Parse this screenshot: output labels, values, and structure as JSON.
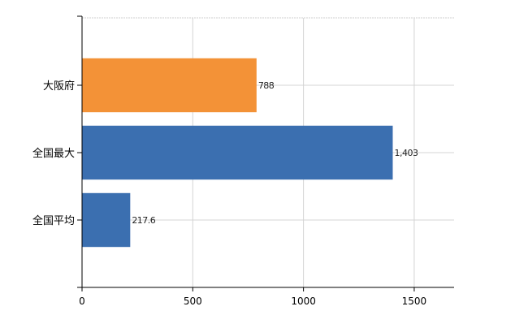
{
  "chart_data": {
    "type": "bar",
    "orientation": "horizontal",
    "title": "",
    "xlabel": "",
    "ylabel": "",
    "categories": [
      "大阪府",
      "全国最大",
      "全国平均"
    ],
    "values": [
      788,
      1403,
      217.6
    ],
    "data_labels": [
      "788",
      "1,403",
      "217.6"
    ],
    "bar_colors": [
      "#F39237",
      "#3B6FB0",
      "#3B6FB0"
    ],
    "xlim": [
      0,
      1680
    ],
    "xticks": [
      0,
      500,
      1000,
      1500
    ],
    "xtick_labels": [
      "0",
      "500",
      "1000",
      "1500"
    ],
    "grid": true,
    "legend": "none"
  }
}
